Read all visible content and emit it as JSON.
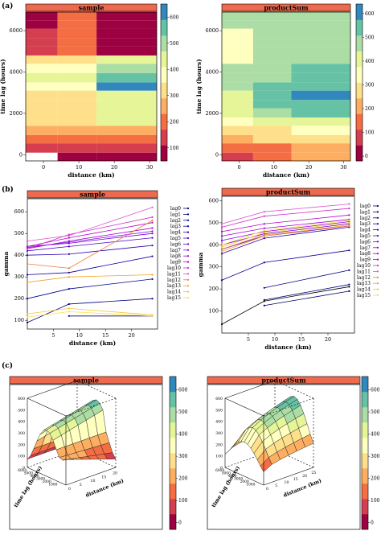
{
  "panel_labels": [
    "(a)",
    "(b)",
    "(c)"
  ],
  "palette": [
    "#9e0142",
    "#d53e4f",
    "#f46d43",
    "#fdae61",
    "#fee08b",
    "#ffffbf",
    "#e6f598",
    "#abdda4",
    "#66c2a5",
    "#3288bd"
  ],
  "header_color": "#ee6a4e",
  "chart_data": [
    {
      "id": "a-sample",
      "type": "heatmap",
      "title": "sample",
      "xlabel": "distance (km)",
      "ylabel": "time lag (hours)",
      "xlim": [
        -5,
        32
      ],
      "ylim": [
        -300,
        6900
      ],
      "x_ticks": [
        "0",
        "10",
        "20",
        "30"
      ],
      "y_ticks": [
        "0",
        "2000",
        "4000",
        "6000"
      ],
      "x_edges": [
        -5,
        4,
        15,
        32
      ],
      "y_edges": [
        -300,
        100,
        550,
        950,
        1400,
        1800,
        2250,
        2650,
        3100,
        3500,
        3950,
        4400,
        4800,
        5250,
        5650,
        6100,
        6500,
        6900
      ],
      "values": [
        [
          null,
          80,
          90
        ],
        [
          120,
          110,
          110
        ],
        [
          170,
          180,
          170
        ],
        [
          230,
          240,
          240
        ],
        [
          300,
          330,
          440
        ],
        [
          310,
          320,
          420
        ],
        [
          320,
          320,
          430
        ],
        [
          340,
          330,
          440
        ],
        [
          380,
          360,
          590
        ],
        [
          430,
          420,
          560
        ],
        [
          390,
          370,
          480
        ],
        [
          320,
          340,
          430
        ],
        [
          120,
          180,
          80
        ],
        [
          110,
          200,
          90
        ],
        [
          110,
          200,
          100
        ],
        [
          100,
          210,
          90
        ],
        [
          100,
          200,
          90
        ]
      ],
      "colorbar": {
        "ticks": [
          "100",
          "200",
          "300",
          "400",
          "500",
          "600"
        ],
        "range": [
          50,
          650
        ]
      }
    },
    {
      "id": "a-productSum",
      "type": "heatmap",
      "title": "productSum",
      "xlabel": "distance (km)",
      "ylabel": "time lag (hours)",
      "xlim": [
        -5,
        32
      ],
      "ylim": [
        -300,
        6900
      ],
      "x_ticks": [
        "0",
        "10",
        "20",
        "30"
      ],
      "y_ticks": [
        "0",
        "2000",
        "4000",
        "6000"
      ],
      "x_edges": [
        -5,
        4,
        15,
        32
      ],
      "y_edges": [
        -300,
        100,
        550,
        950,
        1400,
        1800,
        2250,
        2650,
        3100,
        3500,
        3950,
        4400,
        4800,
        5250,
        5650,
        6100,
        6500,
        6900
      ],
      "values": [
        [
          90,
          150,
          190
        ],
        [
          120,
          170,
          220
        ],
        [
          210,
          250,
          300
        ],
        [
          250,
          300,
          340
        ],
        [
          360,
          400,
          430
        ],
        [
          410,
          470,
          510
        ],
        [
          430,
          520,
          570
        ],
        [
          440,
          530,
          590
        ],
        [
          450,
          510,
          570
        ],
        [
          460,
          500,
          530
        ],
        [
          470,
          490,
          520
        ],
        [
          350,
          470,
          500
        ],
        [
          320,
          460,
          490
        ],
        [
          310,
          470,
          490
        ],
        [
          320,
          480,
          500
        ],
        [
          480,
          490,
          500
        ],
        [
          490,
          490,
          500
        ]
      ],
      "colorbar": {
        "ticks": [
          "0",
          "100",
          "200",
          "300",
          "400",
          "500",
          "600"
        ],
        "range": [
          -20,
          640
        ]
      }
    },
    {
      "id": "b-sample",
      "type": "line",
      "title": "sample",
      "xlabel": "distance (km)",
      "ylabel": "gamma",
      "xlim": [
        0,
        25
      ],
      "ylim": [
        60,
        660
      ],
      "x_ticks": [
        5,
        10,
        15,
        20
      ],
      "y_ticks": [
        100,
        200,
        300,
        400,
        500,
        600
      ],
      "x": [
        0,
        8,
        24
      ],
      "series": [
        {
          "name": "lag0",
          "color": "#000066",
          "values": [
            null,
            120,
            120
          ]
        },
        {
          "name": "lag1",
          "color": "#000080",
          "values": [
            90,
            175,
            200
          ]
        },
        {
          "name": "lag2",
          "color": "#00008b",
          "values": [
            200,
            245,
            290
          ]
        },
        {
          "name": "lag3",
          "color": "#0d00a0",
          "values": [
            310,
            320,
            395
          ]
        },
        {
          "name": "lag4",
          "color": "#2a00b5",
          "values": [
            400,
            405,
            445
          ]
        },
        {
          "name": "lag5",
          "color": "#4b00c8",
          "values": [
            420,
            440,
            480
          ]
        },
        {
          "name": "lag6",
          "color": "#6a00d5",
          "values": [
            440,
            455,
            500
          ]
        },
        {
          "name": "lag7",
          "color": "#8a00e0",
          "values": [
            435,
            460,
            510
          ]
        },
        {
          "name": "lag8",
          "color": "#a000d8",
          "values": [
            430,
            465,
            525
          ]
        },
        {
          "name": "lag9",
          "color": "#b800cc",
          "values": [
            440,
            480,
            550
          ]
        },
        {
          "name": "lag10",
          "color": "#cc33cc",
          "values": [
            430,
            495,
            575
          ]
        },
        {
          "name": "lag11",
          "color": "#dd55cc",
          "values": [
            465,
            490,
            620
          ]
        },
        {
          "name": "lag12",
          "color": "#ee7744",
          "values": [
            360,
            340,
            560
          ]
        },
        {
          "name": "lag13",
          "color": "#f5a020",
          "values": [
            275,
            300,
            310
          ]
        },
        {
          "name": "lag14",
          "color": "#f7c535",
          "values": [
            130,
            155,
            125
          ]
        },
        {
          "name": "lag15",
          "color": "#f9e050",
          "values": [
            115,
            140,
            120
          ]
        }
      ]
    },
    {
      "id": "b-productSum",
      "type": "line",
      "title": "productSum",
      "xlabel": "distance (km)",
      "ylabel": "gamma",
      "xlim": [
        0,
        25
      ],
      "ylim": [
        0,
        620
      ],
      "x_ticks": [
        5,
        10,
        15,
        20
      ],
      "y_ticks": [
        100,
        200,
        300,
        400,
        500,
        600
      ],
      "x": [
        0,
        8,
        24
      ],
      "series": [
        {
          "name": "lag0",
          "color": "#000066",
          "values": [
            null,
            125,
            190
          ]
        },
        {
          "name": "lag1",
          "color": "#000080",
          "values": [
            null,
            150,
            220
          ]
        },
        {
          "name": "lag2",
          "color": "#00008b",
          "values": [
            null,
            205,
            285
          ]
        },
        {
          "name": "lag3",
          "color": "#0d00a0",
          "values": [
            240,
            320,
            375
          ]
        },
        {
          "name": "lag4",
          "color": "#2a00b5",
          "values": [
            360,
            430,
            480
          ]
        },
        {
          "name": "lag5",
          "color": "#4b00c8",
          "values": [
            380,
            440,
            485
          ]
        },
        {
          "name": "lag6",
          "color": "#6a00d5",
          "values": [
            400,
            450,
            495
          ]
        },
        {
          "name": "lag7",
          "color": "#8a00e0",
          "values": [
            420,
            460,
            505
          ]
        },
        {
          "name": "lag8",
          "color": "#a000d8",
          "values": [
            440,
            475,
            515
          ]
        },
        {
          "name": "lag9",
          "color": "#b800cc",
          "values": [
            460,
            495,
            535
          ]
        },
        {
          "name": "lag10",
          "color": "#cc33cc",
          "values": [
            480,
            530,
            565
          ]
        },
        {
          "name": "lag11",
          "color": "#dd55cc",
          "values": [
            495,
            550,
            585
          ]
        },
        {
          "name": "lag12",
          "color": "#ee7744",
          "values": [
            380,
            445,
            485
          ]
        },
        {
          "name": "lag13",
          "color": "#f5a020",
          "values": [
            370,
            440,
            490
          ]
        },
        {
          "name": "lag14",
          "color": "#f7c535",
          "values": [
            390,
            455,
            500
          ]
        },
        {
          "name": "lag15",
          "color": "#f9e050",
          "values": [
            400,
            465,
            510
          ]
        },
        {
          "name": "",
          "color": "#000000",
          "values": [
            40,
            145,
            210
          ]
        }
      ]
    },
    {
      "id": "c-sample",
      "type": "heatmap",
      "subtype": "3d-surface",
      "title": "sample",
      "xlabel": "distance (km)",
      "ylabel": "time lag (hours)",
      "z_ticks": [
        "0",
        "100",
        "200",
        "300",
        "400",
        "500",
        "600"
      ],
      "x_ticks": [
        "0",
        "5",
        "10",
        "15",
        "20"
      ],
      "y_ticks": [
        "1000",
        "2000",
        "3000",
        "4000",
        "5000",
        "6000"
      ],
      "colorbar": {
        "ticks": [
          "0",
          "100",
          "200",
          "300",
          "400",
          "500",
          "600"
        ],
        "range": [
          -30,
          660
        ]
      }
    },
    {
      "id": "c-productSum",
      "type": "heatmap",
      "subtype": "3d-surface",
      "title": "productSum",
      "xlabel": "distance (km)",
      "ylabel": "time lag (hours)",
      "z_ticks": [
        "0",
        "100",
        "200",
        "300",
        "400",
        "500",
        "600"
      ],
      "x_ticks": [
        "0",
        "5",
        "10",
        "15",
        "20",
        "25"
      ],
      "y_ticks": [
        "1000",
        "2000",
        "3000",
        "4000",
        "5000",
        "6000"
      ],
      "colorbar": {
        "ticks": [
          "0",
          "100",
          "200",
          "300",
          "400",
          "500",
          "600"
        ],
        "range": [
          -30,
          660
        ]
      }
    }
  ]
}
